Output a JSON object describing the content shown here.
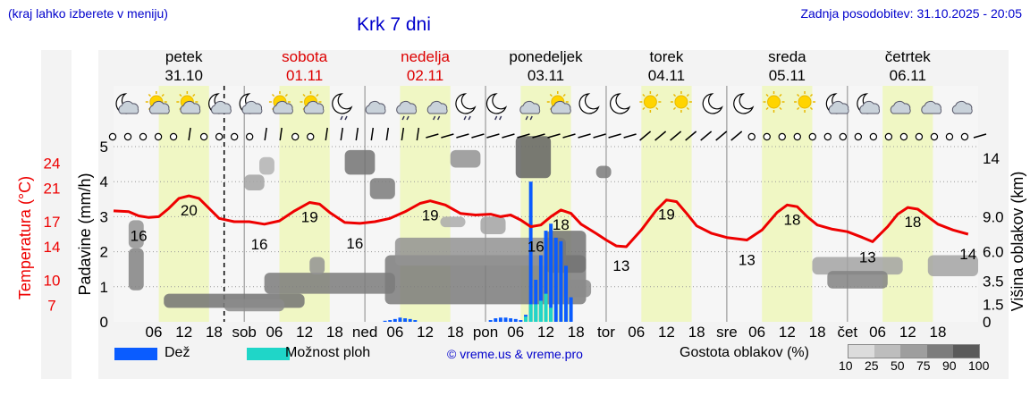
{
  "header": {
    "left_note": "(kraj lahko izberete v meniju)",
    "title": "Krk 7 dni",
    "updated": "Zadnja posodobitev: 31.10.2025 - 20:05"
  },
  "days": [
    {
      "name": "petek",
      "date": "31.10",
      "weekend": false,
      "abbr": ""
    },
    {
      "name": "sobota",
      "date": "01.11",
      "weekend": true,
      "abbr": "sob"
    },
    {
      "name": "nedelja",
      "date": "02.11",
      "weekend": true,
      "abbr": "ned"
    },
    {
      "name": "ponedeljek",
      "date": "03.11",
      "weekend": false,
      "abbr": "pon"
    },
    {
      "name": "torek",
      "date": "04.11",
      "weekend": false,
      "abbr": "tor"
    },
    {
      "name": "sreda",
      "date": "05.11",
      "weekend": false,
      "abbr": "sre"
    },
    {
      "name": "četrtek",
      "date": "06.11",
      "weekend": false,
      "abbr": "čet"
    }
  ],
  "colors": {
    "title": "#0000cc",
    "weekend": "#dd0000",
    "temperature": "#ee0000",
    "rain": "#0a5cff",
    "showers": "#1fd6c8",
    "daylight": "#f0f7c4",
    "plot_bg": "#f6f6f6"
  },
  "legend": {
    "rain": "Dež",
    "showers": "Možnost ploh",
    "copyright": "© vreme.us & vreme.pro",
    "cloud_density_label": "Gostota oblakov (%)",
    "cloud_density_ticks": [
      "10",
      "25",
      "50",
      "75",
      "90",
      "100"
    ]
  },
  "weather_icons": [
    "moon-cloud-icon",
    "sun-cloud-icon",
    "sun-cloud-icon",
    "moon-cloud-icon",
    "moon-cloud-icon",
    "sun-cloud-icon",
    "sun-cloud-icon",
    "moon-rain-icon",
    "cloud-icon",
    "cloud-rain-icon",
    "cloud-rain-icon",
    "moon-rain-icon",
    "moon-rain-icon",
    "cloud-rain-icon",
    "sun-cloud-icon",
    "moon-icon",
    "moon-icon",
    "sun-icon",
    "sun-icon",
    "moon-icon",
    "moon-icon",
    "sun-icon",
    "sun-icon",
    "moon-cloud-icon",
    "moon-cloud-icon",
    "cloud-icon",
    "cloud-icon",
    "cloud-icon"
  ],
  "wind_glyphs": [
    "o",
    "o",
    "o",
    "o",
    "o",
    "|",
    "o",
    "o",
    "o",
    "o",
    "|",
    "|",
    "o",
    "o",
    "|",
    "|",
    "|",
    "|",
    "|",
    "|",
    "|",
    "-",
    "-",
    "-",
    "-",
    "-",
    "-",
    "-",
    "-",
    "-",
    "-",
    "-",
    "-",
    "-",
    "-",
    "/",
    "/",
    "/",
    "/",
    "/",
    "/",
    "/",
    "o",
    "o",
    "o",
    "o",
    "o",
    "o",
    "o",
    "o",
    "o",
    "o",
    "o",
    "o",
    "o",
    "o",
    "o",
    "-"
  ],
  "chart_data": {
    "type": "line",
    "title": "Krk 7 dni",
    "x_unit": "hours since 31.10 00:00",
    "x_range": [
      -2,
      170
    ],
    "now_hour": 20,
    "time_tick_hours": [
      6,
      12,
      18,
      30,
      36,
      42,
      54,
      60,
      66,
      78,
      84,
      90,
      102,
      108,
      114,
      126,
      132,
      138,
      150,
      156,
      162
    ],
    "time_tick_label": "hour of day",
    "y_left_precip": {
      "label": "Padavine (mm/h)",
      "range": [
        0,
        5
      ],
      "ticks": [
        0,
        1,
        2,
        3,
        4,
        5
      ]
    },
    "y_left_temp": {
      "label": "Temperatura (°C)",
      "range": [
        5,
        26
      ],
      "ticks": [
        7,
        10,
        14,
        17,
        21,
        24
      ]
    },
    "y_right_cloud": {
      "label": "Višina oblakov (km)",
      "range": [
        0,
        15
      ],
      "ticks": [
        0,
        1.5,
        3.5,
        6.0,
        9.0,
        14
      ]
    },
    "series": [
      {
        "name": "Temperatura (°C)",
        "type": "line",
        "points": [
          [
            -2,
            18.3
          ],
          [
            1,
            18.2
          ],
          [
            3,
            17.7
          ],
          [
            5,
            17.5
          ],
          [
            7,
            17.6
          ],
          [
            9,
            18.6
          ],
          [
            11,
            19.8
          ],
          [
            13,
            20.1
          ],
          [
            15,
            19.8
          ],
          [
            17,
            18.6
          ],
          [
            19,
            17.4
          ],
          [
            22,
            17.0
          ],
          [
            25,
            17.0
          ],
          [
            28,
            16.7
          ],
          [
            31,
            17.1
          ],
          [
            34,
            18.3
          ],
          [
            37,
            19.3
          ],
          [
            39,
            19.1
          ],
          [
            41,
            18.1
          ],
          [
            44,
            16.9
          ],
          [
            47,
            16.8
          ],
          [
            50,
            17.0
          ],
          [
            53,
            17.4
          ],
          [
            56,
            18.2
          ],
          [
            59,
            19.2
          ],
          [
            61,
            19.5
          ],
          [
            64,
            19.0
          ],
          [
            67,
            18.0
          ],
          [
            70,
            17.8
          ],
          [
            73,
            17.9
          ],
          [
            75,
            17.6
          ],
          [
            77,
            17.8
          ],
          [
            79,
            17.2
          ],
          [
            81,
            16.4
          ],
          [
            83,
            16.6
          ],
          [
            85,
            17.6
          ],
          [
            87,
            18.4
          ],
          [
            89,
            18.0
          ],
          [
            91,
            16.7
          ],
          [
            94,
            15.6
          ],
          [
            96,
            14.8
          ],
          [
            98,
            14.1
          ],
          [
            100,
            14.0
          ],
          [
            103,
            16.0
          ],
          [
            106,
            18.4
          ],
          [
            108,
            19.6
          ],
          [
            110,
            19.4
          ],
          [
            112,
            18.0
          ],
          [
            114,
            16.5
          ],
          [
            117,
            15.6
          ],
          [
            120,
            15.1
          ],
          [
            124,
            14.8
          ],
          [
            127,
            16.0
          ],
          [
            130,
            18.1
          ],
          [
            132,
            19.0
          ],
          [
            134,
            18.8
          ],
          [
            136,
            17.6
          ],
          [
            138,
            16.6
          ],
          [
            141,
            16.1
          ],
          [
            144,
            15.8
          ],
          [
            147,
            15.1
          ],
          [
            149,
            14.6
          ],
          [
            152,
            16.4
          ],
          [
            154,
            17.9
          ],
          [
            156,
            18.7
          ],
          [
            158,
            18.5
          ],
          [
            160,
            17.6
          ],
          [
            162,
            16.7
          ],
          [
            165,
            16.0
          ],
          [
            168,
            15.5
          ]
        ]
      },
      {
        "name": "Dež (mm/h)",
        "type": "bar",
        "points": [
          [
            52,
            0.03
          ],
          [
            53,
            0.05
          ],
          [
            54,
            0.08
          ],
          [
            55,
            0.12
          ],
          [
            56,
            0.1
          ],
          [
            57,
            0.08
          ],
          [
            58,
            0.05
          ],
          [
            73,
            0.05
          ],
          [
            74,
            0.1
          ],
          [
            75,
            0.12
          ],
          [
            76,
            0.12
          ],
          [
            77,
            0.1
          ],
          [
            78,
            0.08
          ],
          [
            79,
            0.05
          ],
          [
            80,
            0.2
          ],
          [
            81,
            4.0
          ],
          [
            82,
            1.2
          ],
          [
            83,
            1.9
          ],
          [
            84,
            2.6
          ],
          [
            85,
            2.8
          ],
          [
            86,
            2.4
          ],
          [
            87,
            2.3
          ],
          [
            88,
            1.6
          ],
          [
            89,
            0.7
          ]
        ]
      },
      {
        "name": "Možnost ploh (mm/h)",
        "type": "bar",
        "points": [
          [
            80,
            0.15
          ],
          [
            81,
            0.5
          ],
          [
            82,
            0.5
          ],
          [
            83,
            0.6
          ],
          [
            84,
            0.8
          ],
          [
            85,
            0.4
          ]
        ]
      }
    ],
    "annotations": [
      {
        "x": 3,
        "label": "16"
      },
      {
        "x": 13,
        "label": "20"
      },
      {
        "x": 27,
        "label": "16"
      },
      {
        "x": 37,
        "label": "19"
      },
      {
        "x": 46,
        "label": "16"
      },
      {
        "x": 61,
        "label": "19"
      },
      {
        "x": 82,
        "label": "16"
      },
      {
        "x": 87,
        "label": "18"
      },
      {
        "x": 99,
        "label": "13"
      },
      {
        "x": 108,
        "label": "19"
      },
      {
        "x": 124,
        "label": "13"
      },
      {
        "x": 133,
        "label": "18"
      },
      {
        "x": 148,
        "label": "13"
      },
      {
        "x": 157,
        "label": "18"
      },
      {
        "x": 168,
        "label": "14"
      }
    ],
    "cloud_patches": [
      {
        "x": 1,
        "y": 2.1,
        "w": 3,
        "h": 0.8,
        "d": 55
      },
      {
        "x": 1,
        "y": 0.9,
        "w": 3,
        "h": 1.2,
        "d": 65
      },
      {
        "x": 8,
        "y": 0.4,
        "w": 28,
        "h": 0.4,
        "d": 75
      },
      {
        "x": 20,
        "y": 0.3,
        "w": 12,
        "h": 0.35,
        "d": 60
      },
      {
        "x": 24,
        "y": 3.75,
        "w": 4,
        "h": 0.45,
        "d": 45
      },
      {
        "x": 27,
        "y": 4.2,
        "w": 3,
        "h": 0.5,
        "d": 35
      },
      {
        "x": 28,
        "y": 0.8,
        "w": 26,
        "h": 0.6,
        "d": 70
      },
      {
        "x": 37,
        "y": 1.35,
        "w": 3,
        "h": 0.5,
        "d": 55
      },
      {
        "x": 44,
        "y": 4.2,
        "w": 6,
        "h": 0.7,
        "d": 75
      },
      {
        "x": 49,
        "y": 3.5,
        "w": 5,
        "h": 0.6,
        "d": 70
      },
      {
        "x": 52,
        "y": 0.5,
        "w": 40,
        "h": 1.4,
        "d": 70
      },
      {
        "x": 54,
        "y": 1.6,
        "w": 34,
        "h": 0.8,
        "d": 55
      },
      {
        "x": 63,
        "y": 2.7,
        "w": 5,
        "h": 0.3,
        "d": 40
      },
      {
        "x": 65,
        "y": 4.4,
        "w": 6,
        "h": 0.5,
        "d": 55
      },
      {
        "x": 71,
        "y": 2.5,
        "w": 5,
        "h": 0.5,
        "d": 45
      },
      {
        "x": 78,
        "y": 4.1,
        "w": 7,
        "h": 1.2,
        "d": 85
      },
      {
        "x": 84,
        "y": 1.4,
        "w": 8,
        "h": 1.2,
        "d": 75
      },
      {
        "x": 87,
        "y": 0.7,
        "w": 6,
        "h": 0.5,
        "d": 60
      },
      {
        "x": 94,
        "y": 4.1,
        "w": 3,
        "h": 0.35,
        "d": 70
      },
      {
        "x": 137,
        "y": 1.35,
        "w": 18,
        "h": 0.5,
        "d": 45
      },
      {
        "x": 140,
        "y": 0.95,
        "w": 12,
        "h": 0.5,
        "d": 65
      },
      {
        "x": 160,
        "y": 1.3,
        "w": 10,
        "h": 0.6,
        "d": 45
      }
    ]
  }
}
